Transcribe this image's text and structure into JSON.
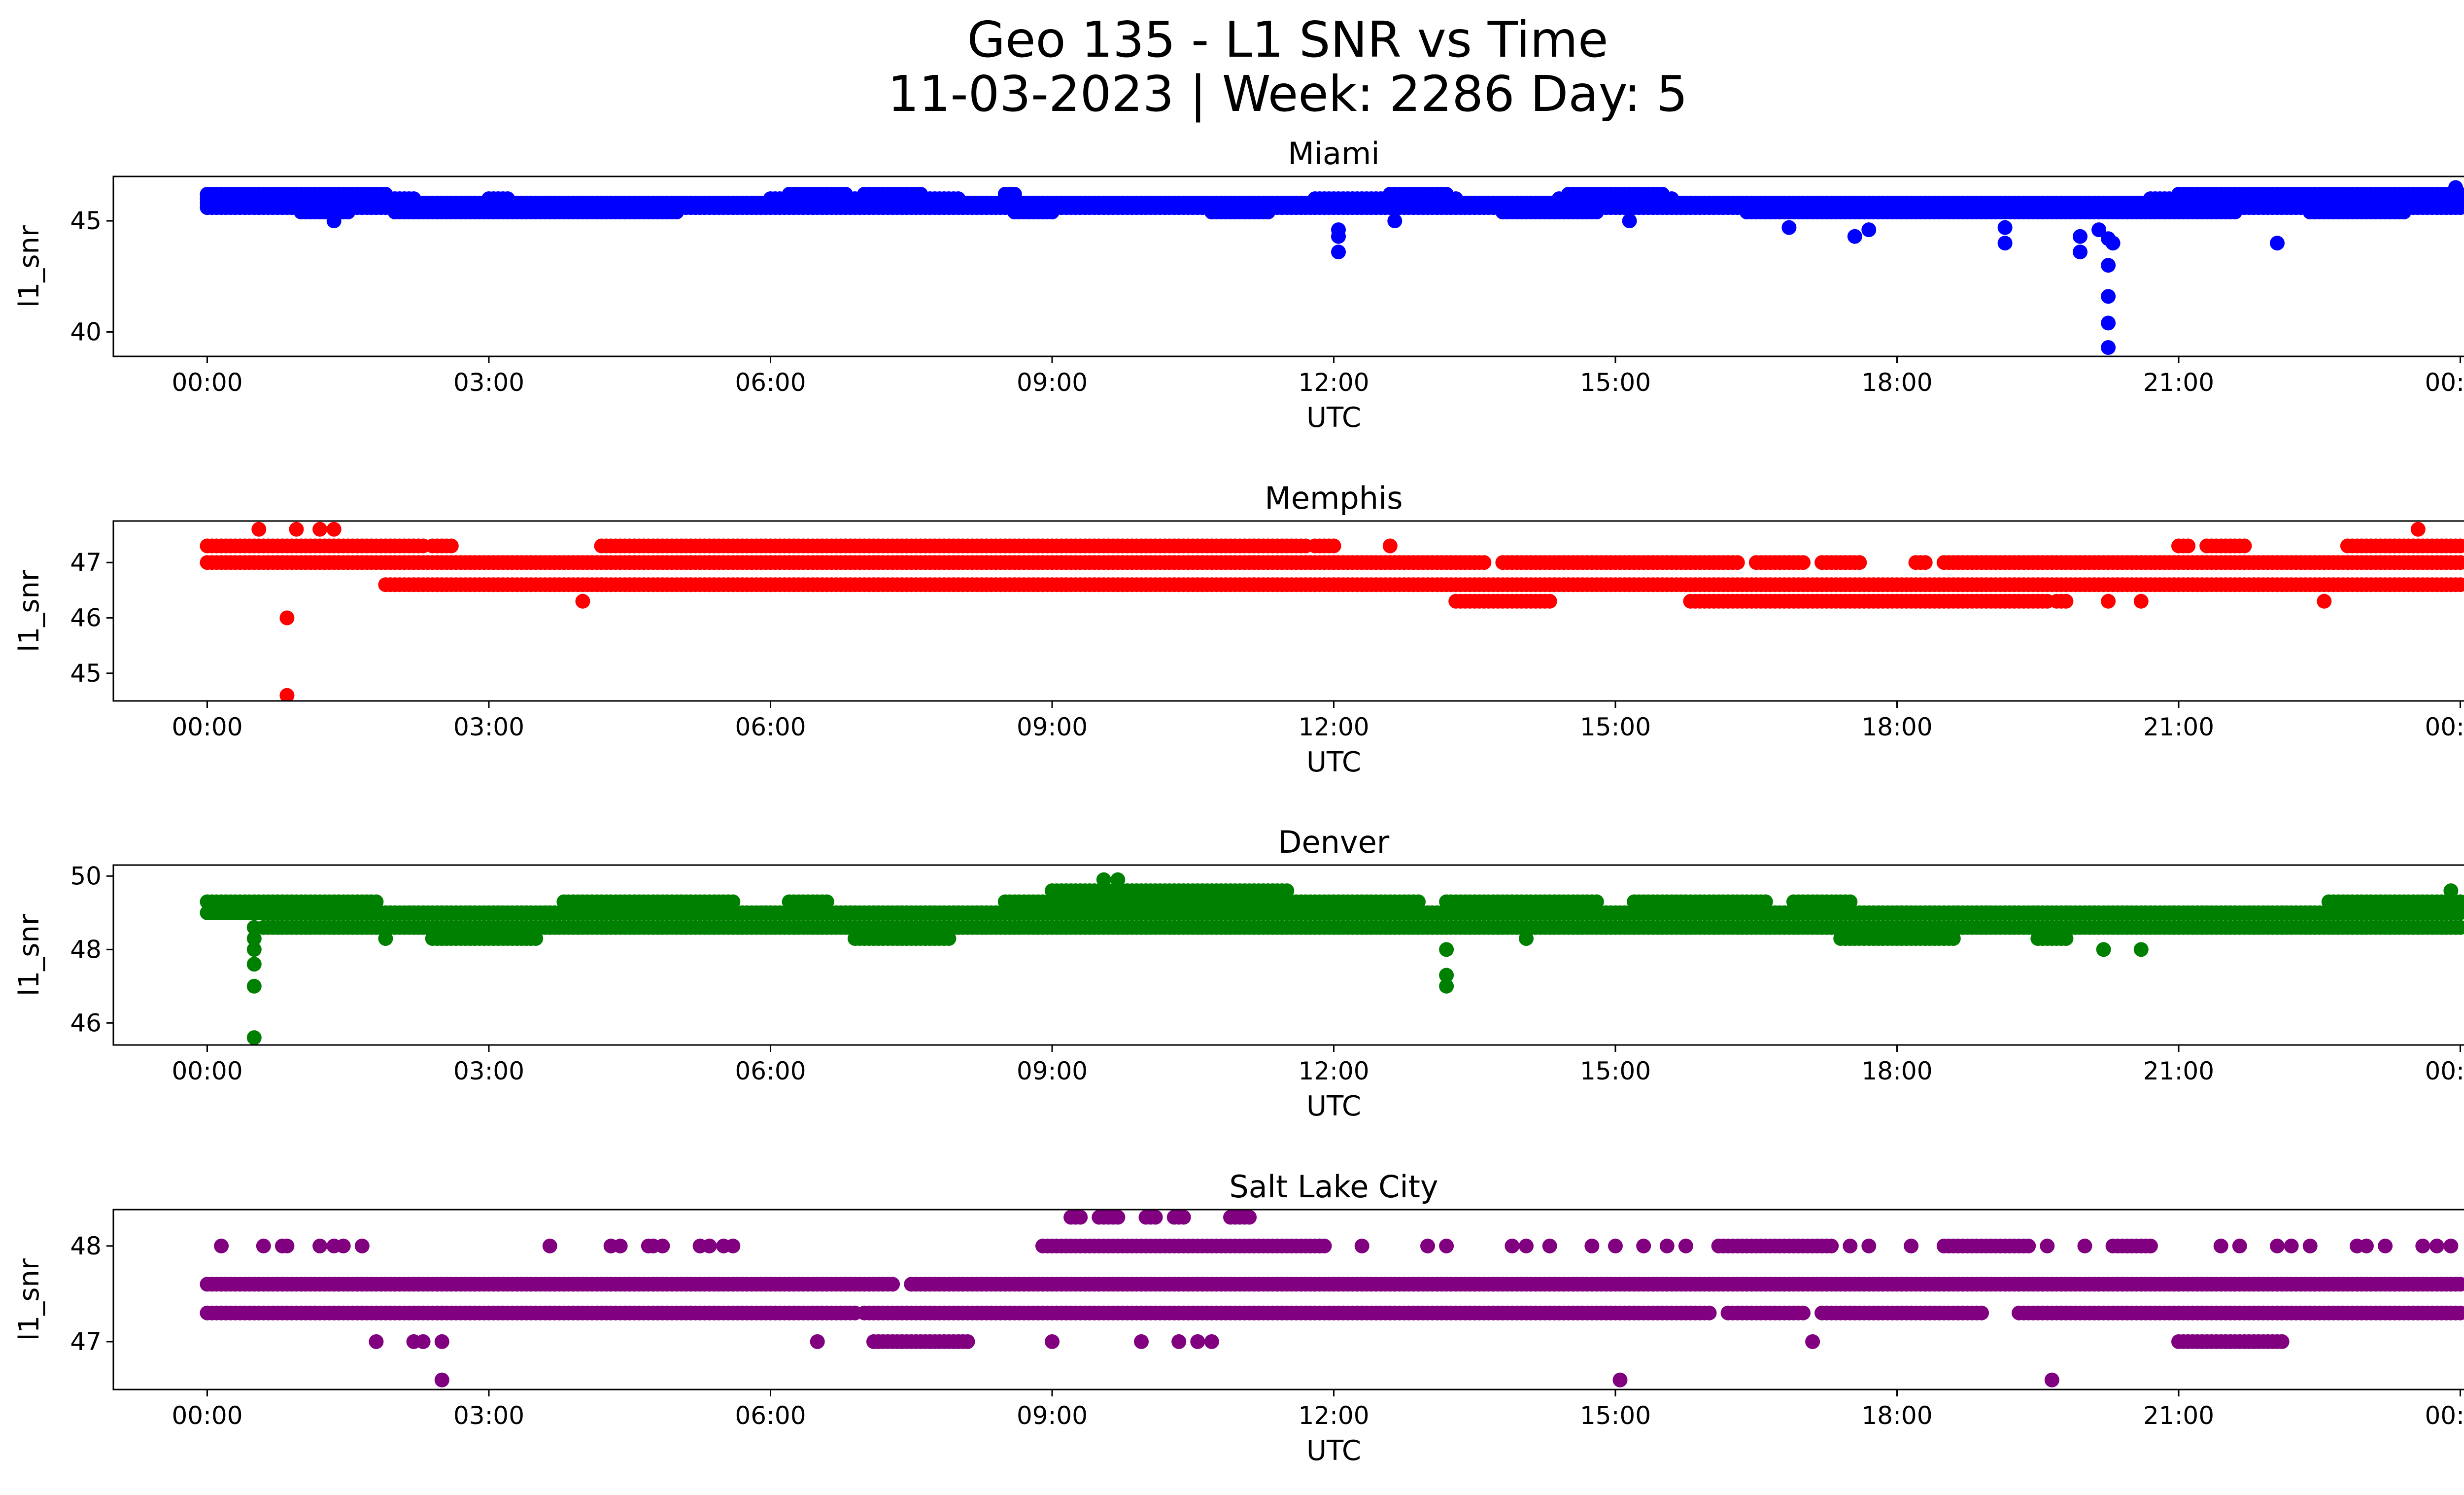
{
  "figure": {
    "title_line1": "Geo 135 - L1 SNR vs Time",
    "title_line2": "11-03-2023 | Week: 2286 Day: 5"
  },
  "chart_data": [
    {
      "type": "scatter",
      "title": "Miami",
      "xlabel": "UTC",
      "ylabel": "l1_snr",
      "color": "#0000ff",
      "x_unit": "hours UTC",
      "xlim": [
        -1.0,
        25.0
      ],
      "ylim": [
        38.9,
        47.0
      ],
      "x_ticks": [
        0,
        3,
        6,
        9,
        12,
        15,
        18,
        21,
        24
      ],
      "x_tick_labels": [
        "00:00",
        "03:00",
        "06:00",
        "09:00",
        "12:00",
        "15:00",
        "18:00",
        "21:00",
        "00:00"
      ],
      "y_ticks": [
        40,
        45
      ],
      "grid": false,
      "bands": [
        {
          "value": 46.2,
          "segments": [
            [
              0.0,
              1.9
            ],
            [
              6.2,
              6.8
            ],
            [
              7.0,
              7.6
            ],
            [
              8.5,
              8.6
            ],
            [
              12.6,
              13.2
            ],
            [
              14.5,
              15.5
            ],
            [
              21.0,
              24.0
            ]
          ]
        },
        {
          "value": 46.0,
          "segments": [
            [
              0.0,
              2.2
            ],
            [
              3.0,
              3.2
            ],
            [
              6.0,
              8.0
            ],
            [
              11.8,
              13.3
            ],
            [
              14.4,
              15.6
            ],
            [
              20.7,
              24.0
            ]
          ]
        },
        {
          "value": 45.8,
          "segments": [
            [
              0.0,
              24.0
            ]
          ]
        },
        {
          "value": 45.6,
          "segments": [
            [
              0.0,
              24.0
            ]
          ]
        },
        {
          "value": 45.4,
          "segments": [
            [
              1.0,
              1.5
            ],
            [
              2.0,
              5.0
            ],
            [
              8.6,
              9.0
            ],
            [
              10.7,
              11.3
            ],
            [
              13.8,
              14.8
            ],
            [
              16.4,
              21.6
            ],
            [
              22.4,
              23.4
            ]
          ]
        }
      ],
      "points": [
        [
          0.55,
          45.6
        ],
        [
          1.35,
          45.0
        ],
        [
          12.05,
          44.6
        ],
        [
          12.05,
          44.3
        ],
        [
          12.05,
          43.6
        ],
        [
          12.65,
          45.0
        ],
        [
          15.15,
          45.0
        ],
        [
          16.85,
          44.7
        ],
        [
          17.55,
          44.3
        ],
        [
          17.7,
          44.6
        ],
        [
          19.15,
          44.7
        ],
        [
          19.15,
          44.0
        ],
        [
          19.95,
          44.3
        ],
        [
          19.95,
          43.6
        ],
        [
          20.15,
          44.6
        ],
        [
          20.25,
          44.2
        ],
        [
          20.25,
          43.0
        ],
        [
          20.25,
          41.6
        ],
        [
          20.25,
          40.4
        ],
        [
          20.25,
          39.3
        ],
        [
          20.3,
          44.0
        ],
        [
          22.05,
          44.0
        ],
        [
          23.95,
          46.5
        ],
        [
          23.95,
          45.7
        ]
      ]
    },
    {
      "type": "scatter",
      "title": "Memphis",
      "xlabel": "UTC",
      "ylabel": "l1_snr",
      "color": "#ff0000",
      "x_unit": "hours UTC",
      "xlim": [
        -1.0,
        25.0
      ],
      "ylim": [
        44.5,
        47.75
      ],
      "x_ticks": [
        0,
        3,
        6,
        9,
        12,
        15,
        18,
        21,
        24
      ],
      "x_tick_labels": [
        "00:00",
        "03:00",
        "06:00",
        "09:00",
        "12:00",
        "15:00",
        "18:00",
        "21:00",
        "00:00"
      ],
      "y_ticks": [
        45,
        46,
        47
      ],
      "grid": false,
      "bands": [
        {
          "value": 47.3,
          "segments": [
            [
              0.0,
              2.3
            ],
            [
              2.4,
              2.6
            ],
            [
              4.2,
              11.7
            ],
            [
              11.8,
              12.0
            ],
            [
              21.0,
              21.1
            ],
            [
              21.3,
              21.7
            ],
            [
              22.8,
              24.0
            ]
          ]
        },
        {
          "value": 47.0,
          "segments": [
            [
              0.0,
              13.6
            ],
            [
              13.8,
              16.3
            ],
            [
              16.5,
              17.0
            ],
            [
              17.2,
              17.6
            ],
            [
              18.2,
              18.3
            ],
            [
              18.5,
              24.0
            ]
          ]
        },
        {
          "value": 46.6,
          "segments": [
            [
              1.9,
              4.2
            ],
            [
              4.2,
              24.0
            ]
          ]
        },
        {
          "value": 46.3,
          "segments": [
            [
              13.3,
              14.3
            ],
            [
              15.8,
              19.6
            ],
            [
              19.7,
              19.8
            ]
          ]
        }
      ],
      "points": [
        [
          0.55,
          47.6
        ],
        [
          0.95,
          47.6
        ],
        [
          1.2,
          47.6
        ],
        [
          1.35,
          47.6
        ],
        [
          0.85,
          46.0
        ],
        [
          0.85,
          44.6
        ],
        [
          4.0,
          46.3
        ],
        [
          12.6,
          47.3
        ],
        [
          20.25,
          46.3
        ],
        [
          20.6,
          46.3
        ],
        [
          22.55,
          46.3
        ],
        [
          23.55,
          47.6
        ]
      ]
    },
    {
      "type": "scatter",
      "title": "Denver",
      "xlabel": "UTC",
      "ylabel": "l1_snr",
      "color": "#008000",
      "x_unit": "hours UTC",
      "xlim": [
        -1.0,
        25.0
      ],
      "ylim": [
        45.4,
        50.3
      ],
      "x_ticks": [
        0,
        3,
        6,
        9,
        12,
        15,
        18,
        21,
        24
      ],
      "x_tick_labels": [
        "00:00",
        "03:00",
        "06:00",
        "09:00",
        "12:00",
        "15:00",
        "18:00",
        "21:00",
        "00:00"
      ],
      "y_ticks": [
        46,
        48,
        50
      ],
      "grid": false,
      "bands": [
        {
          "value": 49.6,
          "segments": [
            [
              9.0,
              11.5
            ]
          ]
        },
        {
          "value": 49.3,
          "segments": [
            [
              0.0,
              1.8
            ],
            [
              3.8,
              5.6
            ],
            [
              6.2,
              6.6
            ],
            [
              8.5,
              12.9
            ],
            [
              13.2,
              14.8
            ],
            [
              15.2,
              16.6
            ],
            [
              16.9,
              17.5
            ],
            [
              22.6,
              24.0
            ]
          ]
        },
        {
          "value": 49.0,
          "segments": [
            [
              0.0,
              24.0
            ]
          ]
        },
        {
          "value": 48.6,
          "segments": [
            [
              0.6,
              24.0
            ]
          ]
        },
        {
          "value": 48.3,
          "segments": [
            [
              6.9,
              7.9
            ],
            [
              2.4,
              3.5
            ],
            [
              17.4,
              18.6
            ],
            [
              19.5,
              19.8
            ]
          ]
        }
      ],
      "points": [
        [
          9.55,
          49.9
        ],
        [
          9.7,
          49.9
        ],
        [
          0.5,
          48.6
        ],
        [
          0.5,
          48.3
        ],
        [
          0.5,
          48.0
        ],
        [
          0.5,
          47.6
        ],
        [
          0.5,
          47.0
        ],
        [
          0.5,
          45.6
        ],
        [
          13.2,
          48.0
        ],
        [
          13.2,
          47.3
        ],
        [
          13.2,
          47.0
        ],
        [
          20.2,
          48.0
        ],
        [
          20.6,
          48.0
        ],
        [
          23.9,
          49.6
        ],
        [
          1.9,
          48.3
        ],
        [
          14.05,
          48.3
        ]
      ]
    },
    {
      "type": "scatter",
      "title": "Salt Lake City",
      "xlabel": "UTC",
      "ylabel": "l1_snr",
      "color": "#800080",
      "x_unit": "hours UTC",
      "xlim": [
        -1.0,
        25.0
      ],
      "ylim": [
        46.5,
        48.38
      ],
      "x_ticks": [
        0,
        3,
        6,
        9,
        12,
        15,
        18,
        21,
        24
      ],
      "x_tick_labels": [
        "00:00",
        "03:00",
        "06:00",
        "09:00",
        "12:00",
        "15:00",
        "18:00",
        "21:00",
        "00:00"
      ],
      "y_ticks": [
        47,
        48
      ],
      "grid": false,
      "bands": [
        {
          "value": 48.3,
          "segments": [
            [
              9.2,
              9.3
            ],
            [
              9.5,
              9.7
            ],
            [
              10.0,
              10.1
            ],
            [
              10.3,
              10.4
            ],
            [
              10.9,
              11.1
            ]
          ]
        },
        {
          "value": 48.0,
          "segments": [
            [
              8.9,
              11.9
            ],
            [
              16.1,
              17.3
            ],
            [
              18.5,
              19.4
            ],
            [
              20.3,
              20.7
            ]
          ]
        },
        {
          "value": 47.6,
          "segments": [
            [
              0.0,
              7.3
            ],
            [
              7.5,
              24.0
            ]
          ]
        },
        {
          "value": 47.3,
          "segments": [
            [
              0.0,
              6.9
            ],
            [
              7.0,
              16.0
            ],
            [
              16.2,
              17.0
            ],
            [
              17.2,
              18.9
            ],
            [
              19.3,
              24.0
            ]
          ]
        },
        {
          "value": 47.0,
          "segments": [
            [
              7.1,
              8.1
            ],
            [
              21.0,
              22.1
            ]
          ]
        }
      ],
      "points": [
        [
          0.15,
          48.0
        ],
        [
          0.6,
          48.0
        ],
        [
          0.8,
          48.0
        ],
        [
          0.85,
          48.0
        ],
        [
          1.2,
          48.0
        ],
        [
          1.35,
          48.0
        ],
        [
          1.45,
          48.0
        ],
        [
          1.65,
          48.0
        ],
        [
          3.65,
          48.0
        ],
        [
          4.3,
          48.0
        ],
        [
          4.4,
          48.0
        ],
        [
          4.7,
          48.0
        ],
        [
          4.75,
          48.0
        ],
        [
          4.85,
          48.0
        ],
        [
          5.25,
          48.0
        ],
        [
          5.35,
          48.0
        ],
        [
          5.5,
          48.0
        ],
        [
          5.6,
          48.0
        ],
        [
          11.85,
          48.0
        ],
        [
          12.3,
          48.0
        ],
        [
          13.0,
          48.0
        ],
        [
          13.2,
          48.0
        ],
        [
          13.9,
          48.0
        ],
        [
          14.05,
          48.0
        ],
        [
          14.3,
          48.0
        ],
        [
          14.75,
          48.0
        ],
        [
          15.0,
          48.0
        ],
        [
          15.3,
          48.0
        ],
        [
          15.55,
          48.0
        ],
        [
          15.75,
          48.0
        ],
        [
          17.5,
          48.0
        ],
        [
          17.7,
          48.0
        ],
        [
          18.15,
          48.0
        ],
        [
          19.6,
          48.0
        ],
        [
          20.0,
          48.0
        ],
        [
          21.45,
          48.0
        ],
        [
          21.65,
          48.0
        ],
        [
          22.05,
          48.0
        ],
        [
          22.2,
          48.0
        ],
        [
          22.4,
          48.0
        ],
        [
          22.9,
          48.0
        ],
        [
          23.0,
          48.0
        ],
        [
          23.2,
          48.0
        ],
        [
          23.6,
          48.0
        ],
        [
          23.75,
          48.0
        ],
        [
          23.9,
          48.0
        ],
        [
          1.8,
          47.0
        ],
        [
          2.2,
          47.0
        ],
        [
          2.3,
          47.0
        ],
        [
          2.5,
          47.0
        ],
        [
          6.5,
          47.0
        ],
        [
          9.0,
          47.0
        ],
        [
          9.95,
          47.0
        ],
        [
          10.35,
          47.0
        ],
        [
          10.55,
          47.0
        ],
        [
          10.7,
          47.0
        ],
        [
          17.1,
          47.0
        ],
        [
          2.5,
          46.6
        ],
        [
          15.05,
          46.6
        ],
        [
          19.65,
          46.6
        ]
      ]
    }
  ]
}
